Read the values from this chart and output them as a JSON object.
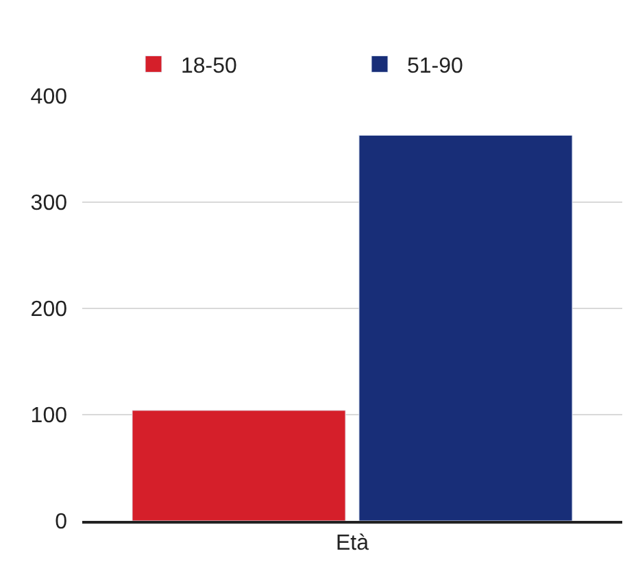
{
  "chart_data": {
    "type": "bar",
    "categories": [
      "Età"
    ],
    "series": [
      {
        "name": "18-50",
        "color": "#d51f2a",
        "values": [
          104
        ]
      },
      {
        "name": "51-90",
        "color": "#182e78",
        "values": [
          363
        ]
      }
    ],
    "ylim": [
      0,
      400
    ],
    "yticks": [
      0,
      100,
      200,
      300,
      400
    ],
    "grid": "y",
    "legend": "top"
  }
}
